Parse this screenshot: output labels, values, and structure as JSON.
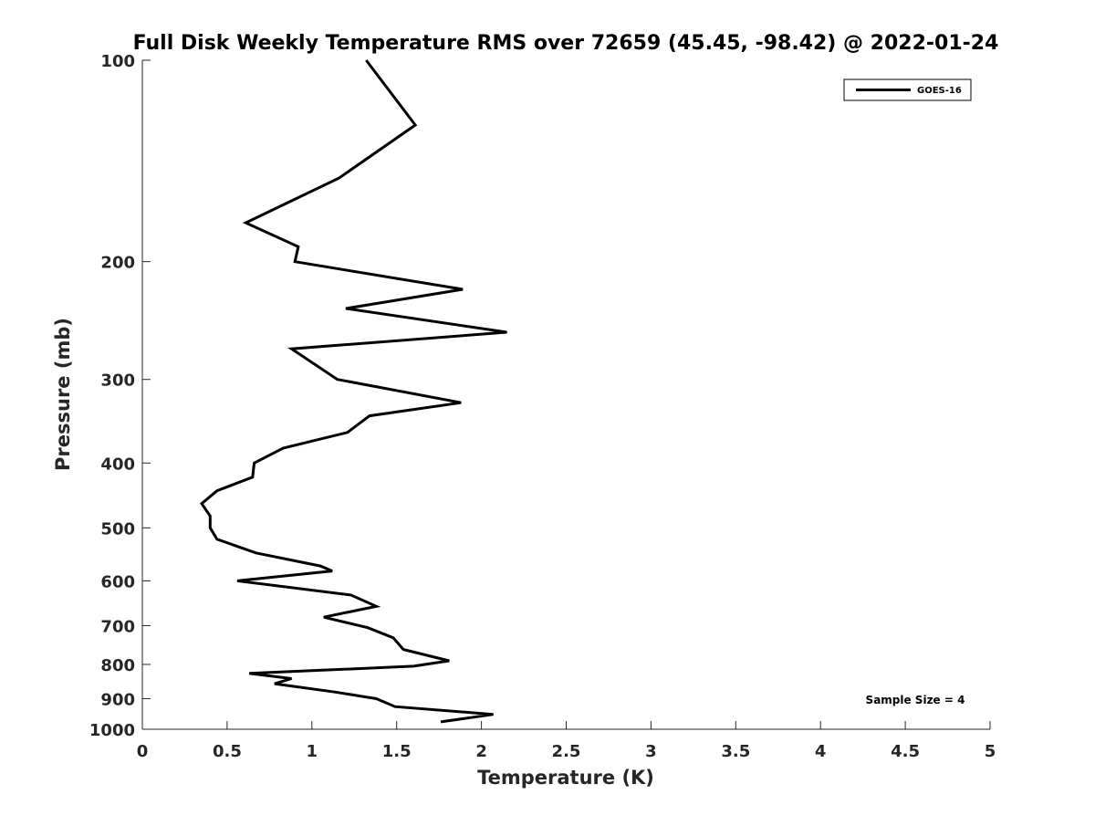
{
  "chart_data": {
    "type": "line",
    "title": "Full Disk Weekly Temperature RMS over 72659 (45.45, -98.42) @ 2022-01-24",
    "xlabel": "Temperature (K)",
    "ylabel": "Pressure (mb)",
    "xlim": [
      0,
      5
    ],
    "ylim": [
      100,
      1000
    ],
    "y_scale": "log",
    "y_reversed": true,
    "x_ticks": [
      "0",
      "0.5",
      "1",
      "1.5",
      "2",
      "2.5",
      "3",
      "3.5",
      "4",
      "4.5",
      "5"
    ],
    "y_ticks": [
      "100",
      "200",
      "300",
      "400",
      "500",
      "600",
      "700",
      "800",
      "900",
      "1000"
    ],
    "grid": false,
    "legend_position": "top-right",
    "series": [
      {
        "name": "GOES-16",
        "color": "#000000",
        "x": [
          1.32,
          1.61,
          1.16,
          0.61,
          0.92,
          0.9,
          1.89,
          1.2,
          2.15,
          0.88,
          1.15,
          1.88,
          1.34,
          1.21,
          0.83,
          0.66,
          0.65,
          0.44,
          0.35,
          0.4,
          0.4,
          0.44,
          0.67,
          1.05,
          1.12,
          0.56,
          1.23,
          1.38,
          1.07,
          1.33,
          1.48,
          1.5,
          1.54,
          1.81,
          1.6,
          0.63,
          0.88,
          0.78,
          1.14,
          1.38,
          1.49,
          2.07,
          1.76
        ],
        "y": [
          100,
          125,
          150,
          175,
          190,
          200,
          220,
          235,
          255,
          270,
          300,
          325,
          340,
          360,
          380,
          400,
          420,
          440,
          460,
          480,
          500,
          520,
          545,
          570,
          580,
          600,
          630,
          655,
          680,
          705,
          730,
          740,
          760,
          790,
          805,
          825,
          840,
          855,
          880,
          900,
          925,
          950,
          975
        ]
      }
    ],
    "annotations": [
      "Sample Size = 4"
    ]
  }
}
